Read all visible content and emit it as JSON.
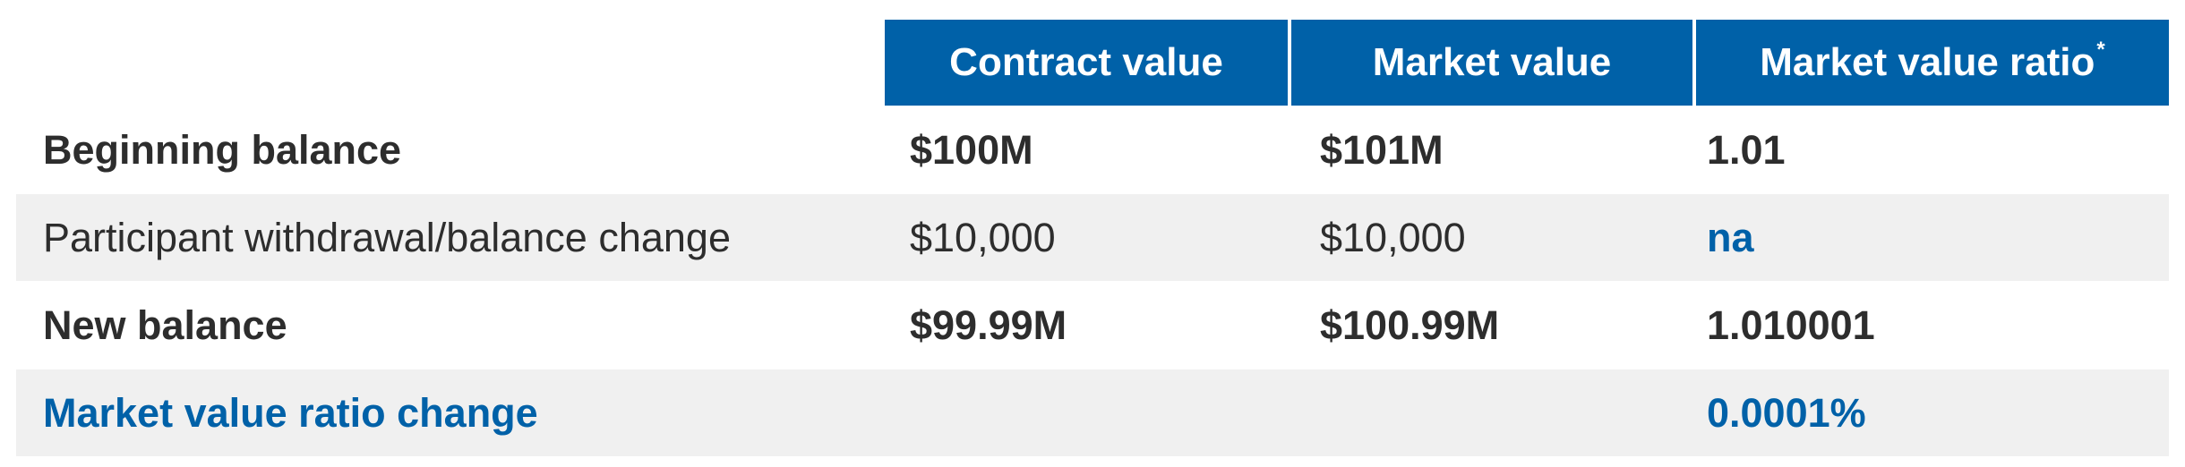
{
  "table": {
    "headers": {
      "contract_value": "Contract value",
      "market_value": "Market value",
      "market_value_ratio": "Market value ratio",
      "market_value_ratio_mark": "*"
    },
    "rows": [
      {
        "label": "Beginning balance",
        "contract": "$100M",
        "market": "$101M",
        "ratio": "1.01"
      },
      {
        "label": "Participant withdrawal/balance change",
        "contract": "$10,000",
        "market": "$10,000",
        "ratio": "na"
      },
      {
        "label": "New balance",
        "contract": "$99.99M",
        "market": "$100.99M",
        "ratio": "1.010001"
      },
      {
        "label": "Market value ratio change",
        "contract": "",
        "market": "",
        "ratio": "0.0001%"
      }
    ]
  },
  "colors": {
    "header_bg": "#0061a8",
    "accent_blue": "#0061a8",
    "shaded_row": "#f0f0f0",
    "text": "#2d2d2d"
  }
}
